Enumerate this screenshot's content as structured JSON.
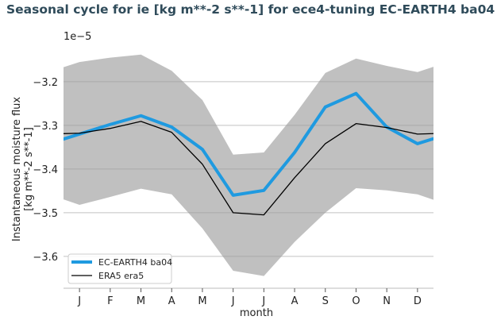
{
  "chart_data": {
    "type": "line",
    "title": "Seasonal cycle for ie [kg m**-2 s**-1] for ece4-tuning EC-EARTH4 ba04",
    "xlabel": "month",
    "ylabel": [
      "Instantaneous moisture flux",
      "[kg m**-2 s**-1]"
    ],
    "y_offset_label": "1e−5",
    "categories": [
      "J",
      "F",
      "M",
      "A",
      "M",
      "J",
      "J",
      "A",
      "S",
      "O",
      "N",
      "D"
    ],
    "yticks": [
      -3.2,
      -3.3,
      -3.4,
      -3.5,
      -3.6
    ],
    "ytick_labels": [
      "−3.2",
      "−3.3",
      "−3.4",
      "−3.5",
      "−3.6"
    ],
    "ylim": [
      -3.673,
      -3.113
    ],
    "grid": "horizontal",
    "legend_position": "bottom-left",
    "series": [
      {
        "name": "EC-EARTH4 ba04",
        "color": "#1f9ae0",
        "values": [
          -3.32,
          -3.298,
          -3.278,
          -3.304,
          -3.355,
          -3.46,
          -3.449,
          -3.362,
          -3.258,
          -3.227,
          -3.304,
          -3.342
        ]
      },
      {
        "name": "ERA5 era5",
        "color": "#000000",
        "values": [
          -3.318,
          -3.307,
          -3.291,
          -3.316,
          -3.389,
          -3.5,
          -3.505,
          -3.42,
          -3.342,
          -3.296,
          -3.305,
          -3.32
        ]
      }
    ],
    "band": {
      "color": "#c0c0c0",
      "upper": [
        -3.155,
        -3.145,
        -3.138,
        -3.175,
        -3.242,
        -3.367,
        -3.362,
        -3.276,
        -3.18,
        -3.147,
        -3.164,
        -3.178
      ],
      "lower": [
        -3.482,
        -3.464,
        -3.445,
        -3.458,
        -3.536,
        -3.633,
        -3.645,
        -3.567,
        -3.5,
        -3.444,
        -3.449,
        -3.458
      ]
    }
  }
}
